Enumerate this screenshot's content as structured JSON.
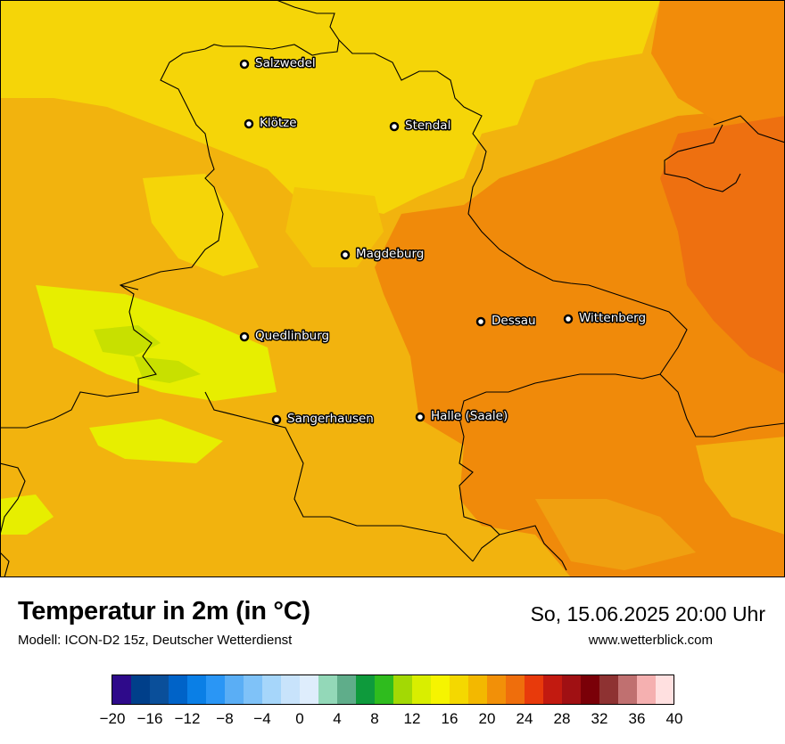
{
  "map": {
    "cities": [
      {
        "name": "Salzwedel"
      },
      {
        "name": "Klötze"
      },
      {
        "name": "Stendal"
      },
      {
        "name": "Magdeburg"
      },
      {
        "name": "Dessau"
      },
      {
        "name": "Wittenberg"
      },
      {
        "name": "Quedlinburg"
      },
      {
        "name": "Sangerhausen"
      },
      {
        "name": "Halle (Saale)"
      }
    ]
  },
  "footer": {
    "title": "Temperatur in 2m (in °C)",
    "model": "Modell: ICON-D2 15z, Deutscher Wetterdienst",
    "datetime": "So, 15.06.2025 20:00 Uhr",
    "website": "www.wetterblick.com"
  },
  "legend": {
    "tick_labels": [
      "−20",
      "−16",
      "−12",
      "−8",
      "−4",
      "0",
      "4",
      "8",
      "12",
      "16",
      "20",
      "24",
      "28",
      "32",
      "36",
      "40"
    ],
    "colors": [
      "#2e0a8a",
      "#003f8a",
      "#0a4f9a",
      "#0063c8",
      "#0a7fe6",
      "#2a96f5",
      "#5aaef5",
      "#7fc2f8",
      "#a6d6fa",
      "#c8e3fb",
      "#deedfc",
      "#93d8b8",
      "#5fad8a",
      "#0e9a3c",
      "#2fbc1e",
      "#a3d904",
      "#d9ee00",
      "#f6f400",
      "#f4d800",
      "#f3b800",
      "#f29008",
      "#ef6e0c",
      "#e83a0b",
      "#c21a10",
      "#a01013",
      "#7a0008",
      "#8e3232",
      "#c07070",
      "#f5b0b0",
      "#ffe0e0"
    ]
  }
}
